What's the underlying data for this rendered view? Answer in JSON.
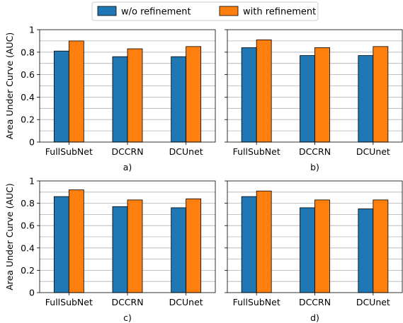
{
  "legend": [
    {
      "label": "w/o refinement",
      "color": "#1f77b4"
    },
    {
      "label": "with refinement",
      "color": "#ff7f0e"
    }
  ],
  "ylabel": "Area Under Curve (AUC)",
  "chart_data": [
    {
      "type": "bar",
      "panel_label": "a)",
      "categories": [
        "FullSubNet",
        "DCCRN",
        "DCUnet"
      ],
      "series": [
        {
          "name": "w/o refinement",
          "values": [
            0.81,
            0.76,
            0.76
          ]
        },
        {
          "name": "with refinement",
          "values": [
            0.9,
            0.83,
            0.85
          ]
        }
      ],
      "ylabel": "Area Under Curve (AUC)",
      "ylim": [
        0,
        1
      ],
      "yticks": [
        "0",
        "0.2",
        "0.4",
        "0.6",
        "0.8",
        "1"
      ],
      "grid": "horizontal",
      "legend_position": "top-center"
    },
    {
      "type": "bar",
      "panel_label": "b)",
      "categories": [
        "FullSubNet",
        "DCCRN",
        "DCUnet"
      ],
      "series": [
        {
          "name": "w/o refinement",
          "values": [
            0.84,
            0.77,
            0.77
          ]
        },
        {
          "name": "with refinement",
          "values": [
            0.91,
            0.84,
            0.85
          ]
        }
      ],
      "ylabel": "",
      "ylim": [
        0,
        1
      ],
      "yticks": [],
      "grid": "horizontal"
    },
    {
      "type": "bar",
      "panel_label": "c)",
      "categories": [
        "FullSubNet",
        "DCCRN",
        "DCUnet"
      ],
      "series": [
        {
          "name": "w/o refinement",
          "values": [
            0.86,
            0.77,
            0.76
          ]
        },
        {
          "name": "with refinement",
          "values": [
            0.92,
            0.83,
            0.84
          ]
        }
      ],
      "ylabel": "Area Under Curve (AUC)",
      "ylim": [
        0,
        1
      ],
      "yticks": [
        "0",
        "0.2",
        "0.4",
        "0.6",
        "0.8",
        "1"
      ],
      "grid": "horizontal"
    },
    {
      "type": "bar",
      "panel_label": "d)",
      "categories": [
        "FullSubNet",
        "DCCRN",
        "DCUnet"
      ],
      "series": [
        {
          "name": "w/o refinement",
          "values": [
            0.86,
            0.76,
            0.75
          ]
        },
        {
          "name": "with refinement",
          "values": [
            0.91,
            0.83,
            0.83
          ]
        }
      ],
      "ylabel": "",
      "ylim": [
        0,
        1
      ],
      "yticks": [],
      "grid": "horizontal"
    }
  ]
}
